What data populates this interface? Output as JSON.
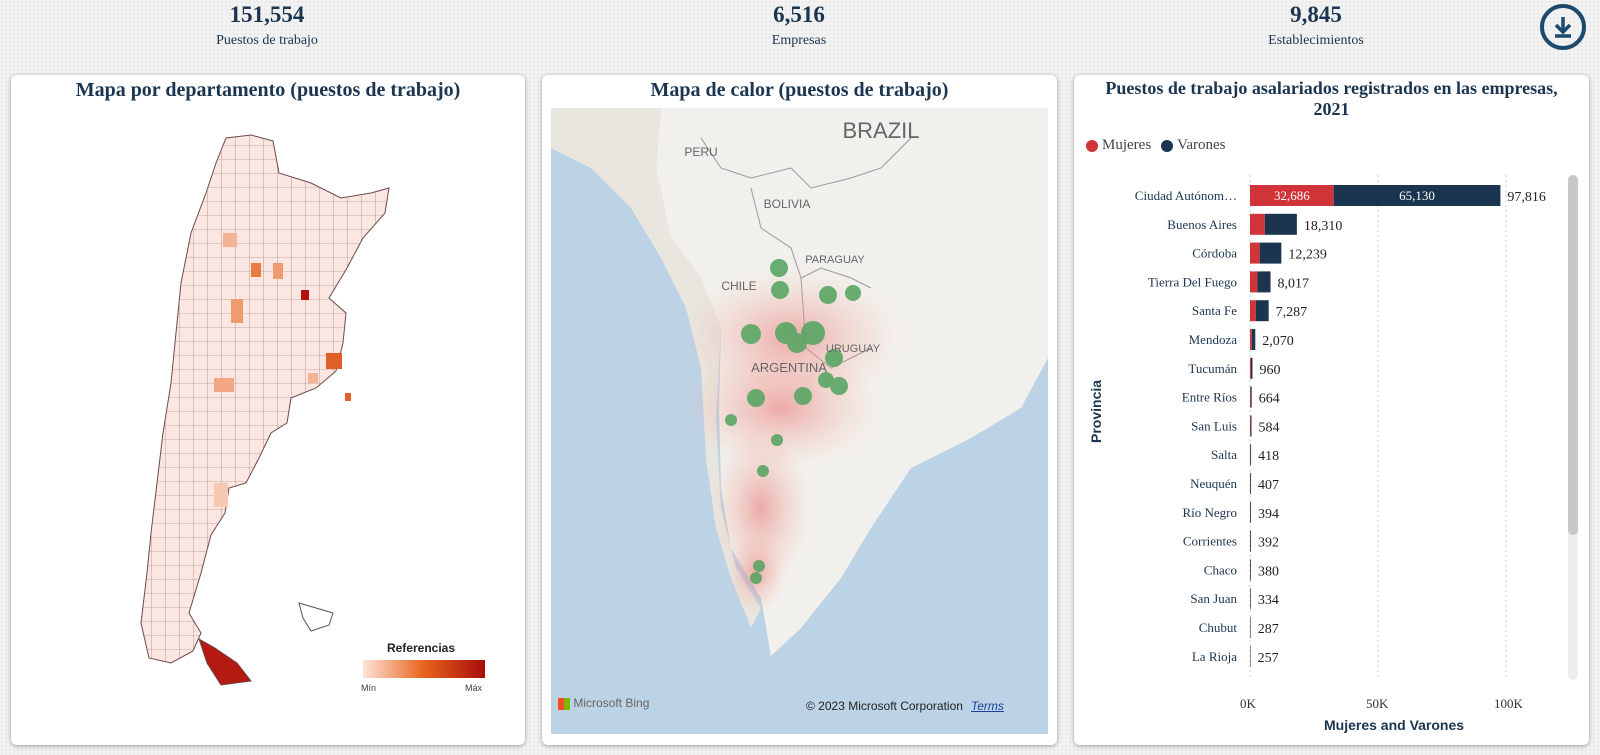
{
  "kpis": [
    {
      "value": "151,554",
      "label": "Puestos de trabajo"
    },
    {
      "value": "6,516",
      "label": "Empresas"
    },
    {
      "value": "9,845",
      "label": "Establecimientos"
    }
  ],
  "download_icon": "download-icon",
  "panel1": {
    "title": "Mapa por departamento (puestos de trabajo)",
    "legend_title": "Referencias",
    "legend_min": "Mín",
    "legend_max": "Máx"
  },
  "panel2": {
    "title": "Mapa de calor (puestos de trabajo)",
    "labels": {
      "brazil": "BRAZIL",
      "peru": "PERU",
      "bolivia": "BOLIVIA",
      "paraguay": "PARAGUAY",
      "chile": "CHILE",
      "argentina": "ARGENTINA",
      "uruguay": "URUGUAY"
    },
    "bing": "Microsoft Bing",
    "copyright": "© 2023 Microsoft Corporation",
    "terms": "Terms"
  },
  "panel3": {
    "title": "Puestos de trabajo asalariados registrados en las empresas, 2021"
  },
  "colors": {
    "mujeres": "#d13438",
    "varones": "#1b3550",
    "accent": "#1b4a6e"
  },
  "chart_data": {
    "type": "bar",
    "orientation": "horizontal",
    "stacked": true,
    "ylabel": "Provincia",
    "xlabel": "Mujeres and Varones",
    "xlim": [
      0,
      100000
    ],
    "xticks": [
      "0K",
      "50K",
      "100K"
    ],
    "xtick_values": [
      0,
      50000,
      100000
    ],
    "legend_position": "top-left",
    "categories": [
      "Ciudad Autónom…",
      "Buenos Aires",
      "Córdoba",
      "Tierra Del Fuego",
      "Santa Fe",
      "Mendoza",
      "Tucumán",
      "Entre Ríos",
      "San Luis",
      "Salta",
      "Neuquén",
      "Río Negro",
      "Corrientes",
      "Chaco",
      "San Juan",
      "Chubut",
      "La Rioja"
    ],
    "series": [
      {
        "name": "Mujeres",
        "values": [
          32686,
          5800,
          3800,
          2900,
          2300,
          700,
          380,
          250,
          220,
          160,
          150,
          150,
          150,
          140,
          120,
          110,
          100
        ]
      },
      {
        "name": "Varones",
        "values": [
          65130,
          12510,
          8439,
          5117,
          4987,
          1370,
          580,
          414,
          364,
          258,
          257,
          244,
          242,
          240,
          214,
          177,
          157
        ]
      }
    ],
    "totals": [
      97816,
      18310,
      12239,
      8017,
      7287,
      2070,
      960,
      664,
      584,
      418,
      407,
      394,
      392,
      380,
      334,
      287,
      257
    ],
    "total_labels": [
      "97,816",
      "18,310",
      "12,239",
      "8,017",
      "7,287",
      "2,070",
      "960",
      "664",
      "584",
      "418",
      "407",
      "394",
      "392",
      "380",
      "334",
      "287",
      "257"
    ],
    "segment_labels": {
      "mujeres_first": "32,686",
      "varones_first": "65,130"
    }
  }
}
